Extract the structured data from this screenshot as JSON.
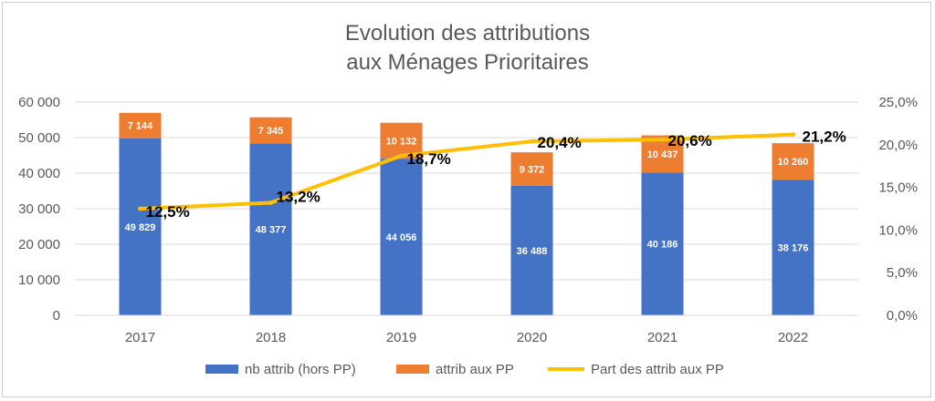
{
  "chart_data": {
    "type": "bar",
    "title_line1": "Evolution des attributions",
    "title_line2": "aux Ménages Prioritaires",
    "categories": [
      "2017",
      "2018",
      "2019",
      "2020",
      "2021",
      "2022"
    ],
    "series": [
      {
        "name": "nb attrib (hors PP)",
        "kind": "stacked-bar",
        "color": "#4472C4",
        "values": [
          49829,
          48377,
          44056,
          36488,
          40186,
          38176
        ],
        "labels": [
          "49 829",
          "48 377",
          "44 056",
          "36 488",
          "40 186",
          "38 176"
        ]
      },
      {
        "name": "attrib aux PP",
        "kind": "stacked-bar",
        "color": "#ED7D31",
        "values": [
          7144,
          7345,
          10132,
          9372,
          10437,
          10260
        ],
        "labels": [
          "7 144",
          "7 345",
          "10 132",
          "9 372",
          "10 437",
          "10 260"
        ]
      },
      {
        "name": "Part des attrib aux PP",
        "kind": "line",
        "axis": "right",
        "color": "#FFC000",
        "values": [
          12.5,
          13.2,
          18.7,
          20.4,
          20.6,
          21.2
        ],
        "labels": [
          "12,5%",
          "13,2%",
          "18,7%",
          "20,4%",
          "20,6%",
          "21,2%"
        ]
      }
    ],
    "y_left": {
      "ylim": [
        0,
        60000
      ],
      "ticks": [
        "0",
        "10 000",
        "20 000",
        "30 000",
        "40 000",
        "50 000",
        "60 000"
      ]
    },
    "y_right": {
      "ylim": [
        0,
        25
      ],
      "ticks": [
        "0,0%",
        "5,0%",
        "10,0%",
        "15,0%",
        "20,0%",
        "25,0%"
      ]
    },
    "grid": true,
    "legend_position": "bottom"
  }
}
